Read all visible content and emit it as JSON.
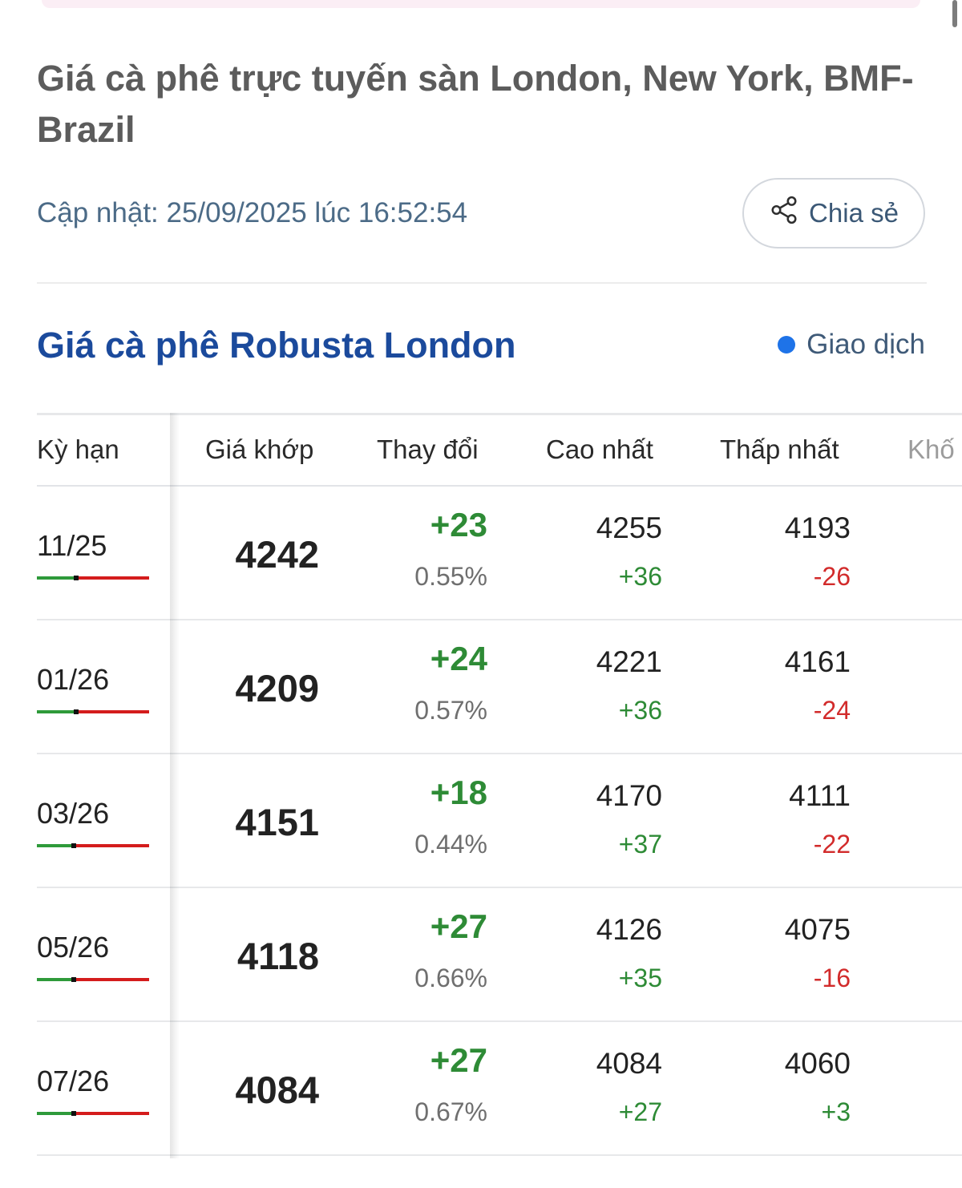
{
  "page": {
    "title": "Giá cà phê trực tuyến sàn London, New York, BMF-Brazil",
    "update_text": "Cập nhật: 25/09/2025 lúc 16:52:54",
    "share_label": "Chia sẻ"
  },
  "section": {
    "title": "Giá cà phê Robusta London",
    "status_label": "Giao dịch",
    "status_color": "#1e73e8"
  },
  "table": {
    "headers": {
      "term": "Kỳ hạn",
      "price": "Giá khớp",
      "change": "Thay đổi",
      "high": "Cao nhất",
      "low": "Thấp nhất",
      "volume": "Khố"
    },
    "rows": [
      {
        "term": "11/25",
        "price": "4242",
        "change": "+23",
        "change_pct": "0.55%",
        "high": "4255",
        "high_diff": "+36",
        "low": "4193",
        "low_diff": "-26",
        "range_position": 0.35
      },
      {
        "term": "01/26",
        "price": "4209",
        "change": "+24",
        "change_pct": "0.57%",
        "high": "4221",
        "high_diff": "+36",
        "low": "4161",
        "low_diff": "-24",
        "range_position": 0.35
      },
      {
        "term": "03/26",
        "price": "4151",
        "change": "+18",
        "change_pct": "0.44%",
        "high": "4170",
        "high_diff": "+37",
        "low": "4111",
        "low_diff": "-22",
        "range_position": 0.33
      },
      {
        "term": "05/26",
        "price": "4118",
        "change": "+27",
        "change_pct": "0.66%",
        "high": "4126",
        "high_diff": "+35",
        "low": "4075",
        "low_diff": "-16",
        "range_position": 0.33
      },
      {
        "term": "07/26",
        "price": "4084",
        "change": "+27",
        "change_pct": "0.67%",
        "high": "4084",
        "high_diff": "+27",
        "low": "4060",
        "low_diff": "+3",
        "range_position": 0.33
      }
    ]
  },
  "colors": {
    "positive": "#2e8b36",
    "negative": "#d22b2b",
    "title_blue": "#1b4a9c"
  }
}
